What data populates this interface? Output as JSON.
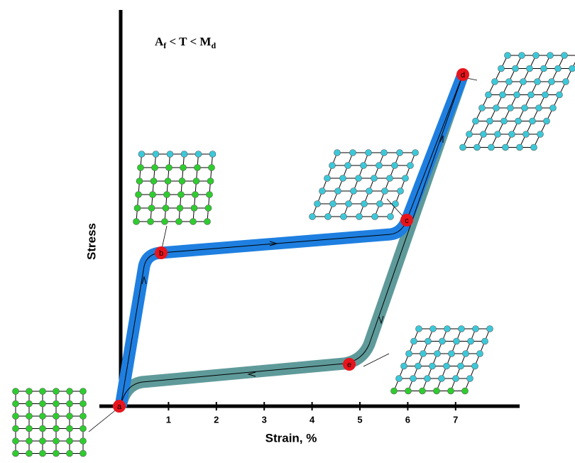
{
  "condition": {
    "parts": [
      "A",
      "f",
      " < T < M",
      "d"
    ]
  },
  "y_axis": {
    "label": "Stress"
  },
  "x_axis": {
    "label": "Strain, %",
    "ticks": [
      1,
      2,
      3,
      4,
      5,
      6,
      7
    ]
  },
  "points": [
    "a",
    "b",
    "c",
    "d",
    "e"
  ]
}
